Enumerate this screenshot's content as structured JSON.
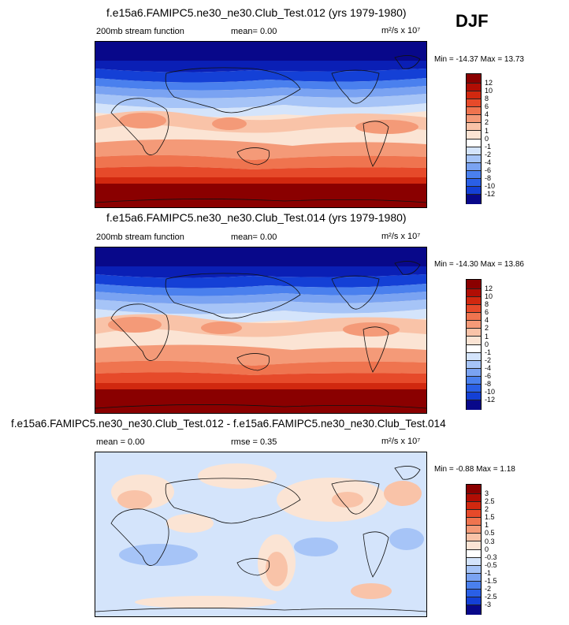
{
  "season": "DJF",
  "colors": {
    "scale12": [
      "#08088a",
      "#0a1fb5",
      "#1440d6",
      "#2a5fe6",
      "#4a80ee",
      "#7aa3f2",
      "#a6c4f7",
      "#d4e4fb",
      "#fbe4d4",
      "#f9c3a8",
      "#f49a78",
      "#ef744f",
      "#e64a2a",
      "#d1280f",
      "#b10d04",
      "#8a0000"
    ]
  },
  "panels": [
    {
      "title": "f.e15a6.FAMIPC5.ne30_ne30.Club_Test.012 (yrs 1979-1980)",
      "left_label": "200mb stream function",
      "mid_label": "mean=  0.00",
      "units": "m²/s x 10⁷",
      "minmax": "Min = -14.37 Max =  13.73"
    },
    {
      "title": "f.e15a6.FAMIPC5.ne30_ne30.Club_Test.014 (yrs 1979-1980)",
      "left_label": "200mb stream function",
      "mid_label": "mean=  0.00",
      "units": "m²/s x 10⁷",
      "minmax": "Min = -14.30 Max =  13.86"
    },
    {
      "title": "f.e15a6.FAMIPC5.ne30_ne30.Club_Test.012 - f.e15a6.FAMIPC5.ne30_ne30.Club_Test.014",
      "left_label": "mean =  0.00",
      "mid_label": "rmse =  0.35",
      "units": "m²/s x 10⁷",
      "minmax": "Min =  -0.88 Max =   1.18"
    }
  ],
  "chart_data": [
    {
      "type": "heatmap",
      "title": "f.e15a6.FAMIPC5.ne30_ne30.Club_Test.012 (yrs 1979-1980)",
      "field": "200mb stream function",
      "units": "m2/s x 10^7",
      "season": "DJF",
      "mean": 0.0,
      "min": -14.37,
      "max": 13.73,
      "contour_levels": [
        12,
        10,
        8,
        6,
        4,
        2,
        1,
        0,
        -1,
        -2,
        -4,
        -6,
        -8,
        -10,
        -12
      ],
      "colorbar_labels": [
        "12",
        "10",
        "8",
        "6",
        "4",
        "2",
        "1",
        "0",
        "-1",
        "-2",
        "-4",
        "-6",
        "-8",
        "-10",
        "-12"
      ],
      "lon_range": [
        0,
        360
      ],
      "lat_range": [
        -90,
        90
      ],
      "pattern": "strong negative values in northern high latitudes, positive values in southern high latitudes"
    },
    {
      "type": "heatmap",
      "title": "f.e15a6.FAMIPC5.ne30_ne30.Club_Test.014 (yrs 1979-1980)",
      "field": "200mb stream function",
      "units": "m2/s x 10^7",
      "season": "DJF",
      "mean": 0.0,
      "min": -14.3,
      "max": 13.86,
      "contour_levels": [
        12,
        10,
        8,
        6,
        4,
        2,
        1,
        0,
        -1,
        -2,
        -4,
        -6,
        -8,
        -10,
        -12
      ],
      "colorbar_labels": [
        "12",
        "10",
        "8",
        "6",
        "4",
        "2",
        "1",
        "0",
        "-1",
        "-2",
        "-4",
        "-6",
        "-8",
        "-10",
        "-12"
      ],
      "lon_range": [
        0,
        360
      ],
      "lat_range": [
        -90,
        90
      ]
    },
    {
      "type": "heatmap",
      "title": "f.e15a6.FAMIPC5.ne30_ne30.Club_Test.012 - f.e15a6.FAMIPC5.ne30_ne30.Club_Test.014",
      "units": "m2/s x 10^7",
      "mean": 0.0,
      "rmse": 0.35,
      "min": -0.88,
      "max": 1.18,
      "contour_levels": [
        3,
        2.5,
        2,
        1.5,
        1,
        0.5,
        0.3,
        0,
        -0.3,
        -0.5,
        -1,
        -1.5,
        -2,
        -2.5,
        -3
      ],
      "colorbar_labels": [
        "3",
        "2.5",
        "2",
        "1.5",
        "1",
        "0.5",
        "0.3",
        "0",
        "-0.3",
        "-0.5",
        "-1",
        "-1.5",
        "-2",
        "-2.5",
        "-3"
      ],
      "lon_range": [
        0,
        360
      ],
      "lat_range": [
        -90,
        90
      ]
    }
  ]
}
